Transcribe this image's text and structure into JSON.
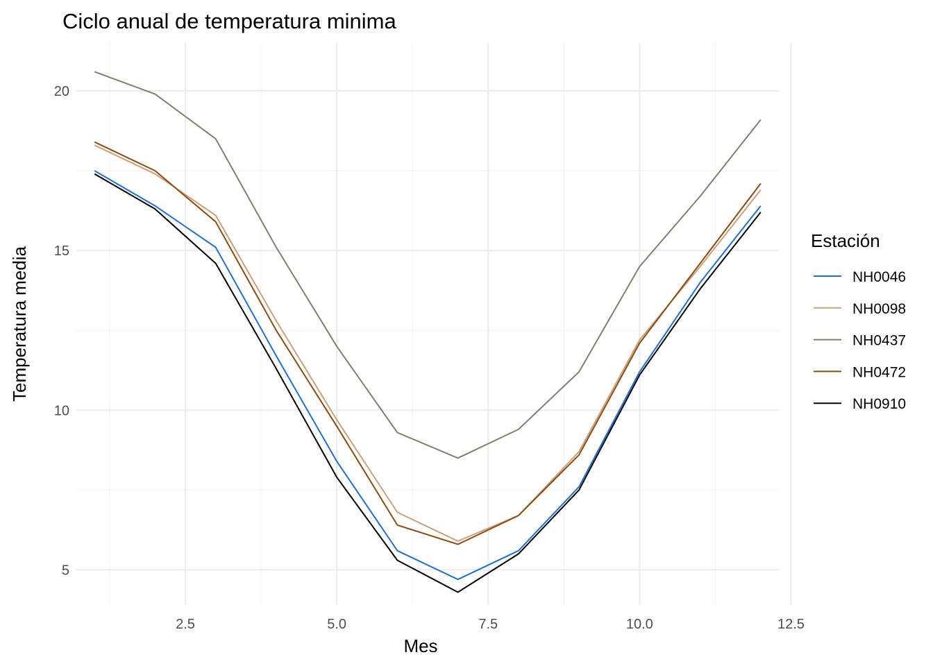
{
  "chart_data": {
    "type": "line",
    "title": "Ciclo anual de temperatura minima",
    "xlabel": "Mes",
    "ylabel": "Temperatura media",
    "xlim": [
      0.7,
      12.3
    ],
    "ylim": [
      3.9,
      21.5
    ],
    "x_ticks": [
      2.5,
      5.0,
      7.5,
      10.0,
      12.5
    ],
    "x_tick_labels": [
      "2.5",
      "5.0",
      "7.5",
      "10.0",
      "12.5"
    ],
    "y_ticks": [
      5,
      10,
      15,
      20
    ],
    "y_tick_labels": [
      "5",
      "10",
      "15",
      "20"
    ],
    "grid": true,
    "legend_title": "Estación",
    "legend_position": "right",
    "x": [
      1,
      2,
      3,
      4,
      5,
      6,
      7,
      8,
      9,
      10,
      11,
      12
    ],
    "series": [
      {
        "name": "NH0046",
        "color": "#1f6fd1",
        "values": [
          17.5,
          16.4,
          15.1,
          11.7,
          8.4,
          5.6,
          4.7,
          5.6,
          7.6,
          11.2,
          14.0,
          16.4
        ]
      },
      {
        "name": "NH0098",
        "color": "#c9a078",
        "values": [
          18.3,
          17.4,
          16.1,
          12.8,
          9.7,
          6.8,
          5.9,
          6.7,
          8.7,
          12.2,
          14.5,
          16.9
        ]
      },
      {
        "name": "NH0437",
        "color": "#7f7f6f",
        "values": [
          20.6,
          19.9,
          18.5,
          15.1,
          12.0,
          9.3,
          8.5,
          9.4,
          11.2,
          14.5,
          16.7,
          19.1
        ]
      },
      {
        "name": "NH0472",
        "color": "#8b4a0f",
        "values": [
          18.4,
          17.5,
          15.9,
          12.5,
          9.5,
          6.4,
          5.8,
          6.7,
          8.6,
          12.1,
          14.6,
          17.1
        ]
      },
      {
        "name": "NH0910",
        "color": "#000000",
        "values": [
          17.4,
          16.3,
          14.6,
          11.3,
          7.9,
          5.3,
          4.3,
          5.5,
          7.5,
          11.1,
          13.8,
          16.2
        ]
      }
    ]
  }
}
